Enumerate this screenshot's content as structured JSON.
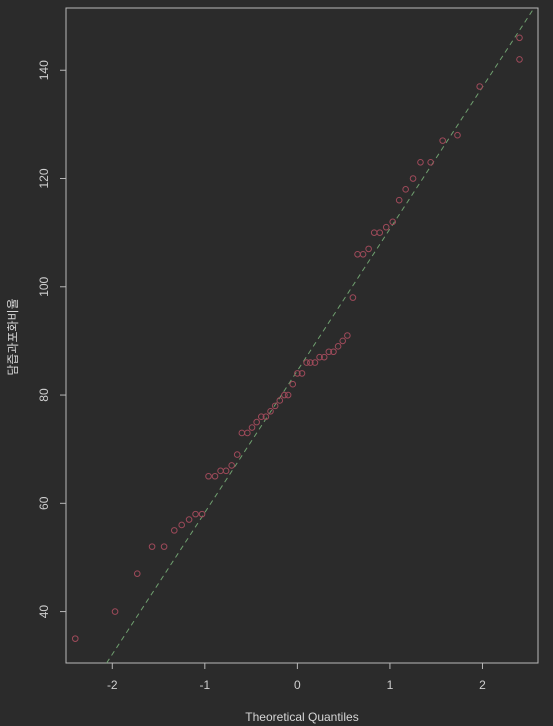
{
  "chart_data": {
    "type": "scatter",
    "title": "",
    "xlabel": "Theoretical Quantiles",
    "ylabel": "담즙과포화비율",
    "xlim": [
      -2.5,
      2.6
    ],
    "ylim": [
      30.5,
      151.5
    ],
    "x_ticks": [
      -2,
      -1,
      0,
      1,
      2
    ],
    "y_ticks": [
      40,
      60,
      80,
      100,
      120,
      140
    ],
    "reference_line": {
      "slope": 26.2,
      "intercept": 84.5,
      "style": "dashed"
    },
    "points": [
      [
        -2.4,
        35
      ],
      [
        -1.97,
        40
      ],
      [
        -1.73,
        47
      ],
      [
        -1.57,
        52
      ],
      [
        -1.44,
        52
      ],
      [
        -1.33,
        55
      ],
      [
        -1.25,
        56
      ],
      [
        -1.17,
        57
      ],
      [
        -1.1,
        58
      ],
      [
        -1.03,
        58
      ],
      [
        -0.96,
        65
      ],
      [
        -0.89,
        65
      ],
      [
        -0.83,
        66
      ],
      [
        -0.77,
        66
      ],
      [
        -0.71,
        67
      ],
      [
        -0.65,
        69
      ],
      [
        -0.6,
        73
      ],
      [
        -0.54,
        73
      ],
      [
        -0.49,
        74
      ],
      [
        -0.44,
        75
      ],
      [
        -0.39,
        76
      ],
      [
        -0.34,
        76
      ],
      [
        -0.29,
        77
      ],
      [
        -0.24,
        78
      ],
      [
        -0.19,
        79
      ],
      [
        -0.14,
        80
      ],
      [
        -0.1,
        80
      ],
      [
        -0.05,
        82
      ],
      [
        0.0,
        84
      ],
      [
        0.05,
        84
      ],
      [
        0.1,
        86
      ],
      [
        0.14,
        86
      ],
      [
        0.19,
        86
      ],
      [
        0.24,
        87
      ],
      [
        0.29,
        87
      ],
      [
        0.34,
        88
      ],
      [
        0.39,
        88
      ],
      [
        0.44,
        89
      ],
      [
        0.49,
        90
      ],
      [
        0.54,
        91
      ],
      [
        0.6,
        98
      ],
      [
        0.65,
        106
      ],
      [
        0.71,
        106
      ],
      [
        0.77,
        107
      ],
      [
        0.83,
        110
      ],
      [
        0.89,
        110
      ],
      [
        0.96,
        111
      ],
      [
        1.03,
        112
      ],
      [
        1.1,
        116
      ],
      [
        1.17,
        118
      ],
      [
        1.25,
        120
      ],
      [
        1.33,
        123
      ],
      [
        1.44,
        123
      ],
      [
        1.57,
        127
      ],
      [
        1.73,
        128
      ],
      [
        1.97,
        137
      ],
      [
        2.4,
        142
      ],
      [
        2.4,
        146
      ]
    ],
    "grid": false,
    "colors": {
      "background": "#2b2b2b",
      "frame": "#b8b8b8",
      "points": "#9e4a5a",
      "line": "#6f9f6f",
      "text": "#cfcfcf"
    }
  }
}
